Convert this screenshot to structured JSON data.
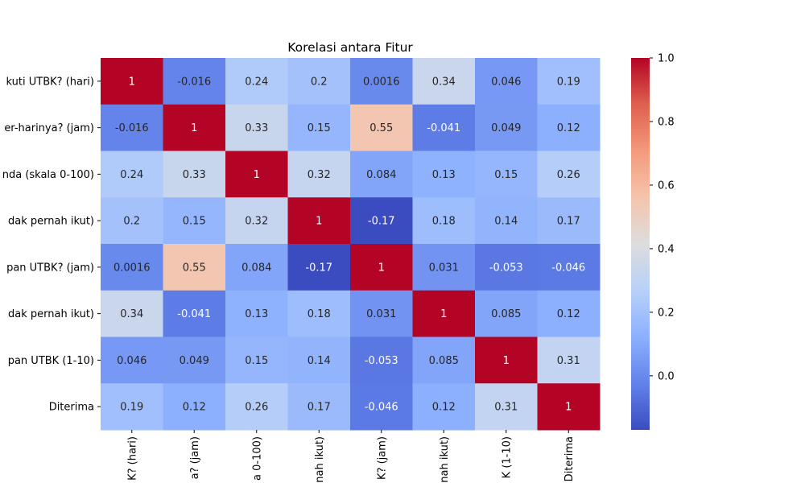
{
  "chart_data": {
    "type": "heatmap",
    "title": "Korelasi antara Fitur",
    "row_labels": [
      "kuti UTBK? (hari)",
      "er-harinya? (jam)",
      "nda (skala 0-100)",
      "dak pernah ikut)",
      "pan UTBK? (jam)",
      "dak pernah ikut)",
      "pan UTBK (1-10)",
      "Diterima"
    ],
    "col_labels": [
      "K? (hari)",
      "a? (jam)",
      "a 0-100)",
      "nah ikut)",
      "K? (jam)",
      "nah ikut)",
      "K (1-10)",
      "Diterima"
    ],
    "values": [
      [
        1,
        -0.016,
        0.24,
        0.2,
        0.0016,
        0.34,
        0.046,
        0.19
      ],
      [
        -0.016,
        1,
        0.33,
        0.15,
        0.55,
        -0.041,
        0.049,
        0.12
      ],
      [
        0.24,
        0.33,
        1,
        0.32,
        0.084,
        0.13,
        0.15,
        0.26
      ],
      [
        0.2,
        0.15,
        0.32,
        1,
        -0.17,
        0.18,
        0.14,
        0.17
      ],
      [
        0.0016,
        0.55,
        0.084,
        -0.17,
        1,
        0.031,
        -0.053,
        -0.046
      ],
      [
        0.34,
        -0.041,
        0.13,
        0.18,
        0.031,
        1,
        0.085,
        0.12
      ],
      [
        0.046,
        0.049,
        0.15,
        0.14,
        -0.053,
        0.085,
        1,
        0.31
      ],
      [
        0.19,
        0.12,
        0.26,
        0.17,
        -0.046,
        0.12,
        0.31,
        1
      ]
    ],
    "value_labels": [
      [
        "1",
        "-0.016",
        "0.24",
        "0.2",
        "0.0016",
        "0.34",
        "0.046",
        "0.19"
      ],
      [
        "-0.016",
        "1",
        "0.33",
        "0.15",
        "0.55",
        "-0.041",
        "0.049",
        "0.12"
      ],
      [
        "0.24",
        "0.33",
        "1",
        "0.32",
        "0.084",
        "0.13",
        "0.15",
        "0.26"
      ],
      [
        "0.2",
        "0.15",
        "0.32",
        "1",
        "-0.17",
        "0.18",
        "0.14",
        "0.17"
      ],
      [
        "0.0016",
        "0.55",
        "0.084",
        "-0.17",
        "1",
        "0.031",
        "-0.053",
        "-0.046"
      ],
      [
        "0.34",
        "-0.041",
        "0.13",
        "0.18",
        "0.031",
        "1",
        "0.085",
        "0.12"
      ],
      [
        "0.046",
        "0.049",
        "0.15",
        "0.14",
        "-0.053",
        "0.085",
        "1",
        "0.31"
      ],
      [
        "0.19",
        "0.12",
        "0.26",
        "0.17",
        "-0.046",
        "0.12",
        "0.31",
        "1"
      ]
    ],
    "colormap": "coolwarm",
    "vmin": -0.17,
    "vmax": 1,
    "colorbar": {
      "ticks": [
        0.0,
        0.2,
        0.4,
        0.6,
        0.8,
        1.0
      ],
      "tick_labels": [
        "0.0",
        "0.2",
        "0.4",
        "0.6",
        "0.8",
        "1.0"
      ],
      "placement": "right"
    },
    "annotated": true,
    "grid": false
  }
}
